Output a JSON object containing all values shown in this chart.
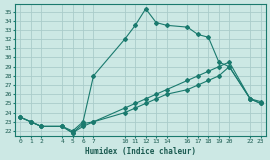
{
  "xlabel": "Humidex (Indice chaleur)",
  "background_color": "#cce8e4",
  "grid_color": "#aaccca",
  "line_color": "#1a7a6e",
  "x_ticks": [
    0,
    1,
    2,
    4,
    5,
    6,
    7,
    10,
    11,
    12,
    13,
    14,
    16,
    17,
    18,
    19,
    20,
    22,
    23
  ],
  "ylim": [
    21.5,
    35.8
  ],
  "xlim": [
    -0.5,
    23.5
  ],
  "yticks": [
    22,
    23,
    24,
    25,
    26,
    27,
    28,
    29,
    30,
    31,
    32,
    33,
    34,
    35
  ],
  "series": [
    {
      "x": [
        0,
        1,
        2,
        4,
        5,
        6,
        7,
        10,
        11,
        12,
        13,
        14,
        16,
        17,
        18,
        19,
        20,
        22,
        23
      ],
      "y": [
        23.5,
        23.0,
        22.5,
        22.5,
        22.0,
        23.0,
        28.0,
        32.0,
        33.5,
        35.3,
        33.8,
        33.5,
        33.3,
        32.5,
        32.2,
        29.5,
        29.0,
        25.5,
        25.0
      ]
    },
    {
      "x": [
        0,
        1,
        2,
        4,
        5,
        6,
        7,
        10,
        11,
        12,
        13,
        14,
        16,
        17,
        18,
        19,
        20,
        22,
        23
      ],
      "y": [
        23.5,
        23.0,
        22.5,
        22.5,
        21.8,
        22.8,
        23.0,
        24.5,
        25.0,
        25.5,
        26.0,
        26.5,
        27.5,
        28.0,
        28.5,
        29.0,
        29.5,
        25.5,
        25.0
      ]
    },
    {
      "x": [
        0,
        1,
        2,
        4,
        5,
        6,
        7,
        10,
        11,
        12,
        13,
        14,
        16,
        17,
        18,
        19,
        20,
        22,
        23
      ],
      "y": [
        23.5,
        23.0,
        22.5,
        22.5,
        21.8,
        22.5,
        23.0,
        24.0,
        24.5,
        25.0,
        25.5,
        26.0,
        26.5,
        27.0,
        27.5,
        28.0,
        29.0,
        25.5,
        25.2
      ]
    }
  ]
}
